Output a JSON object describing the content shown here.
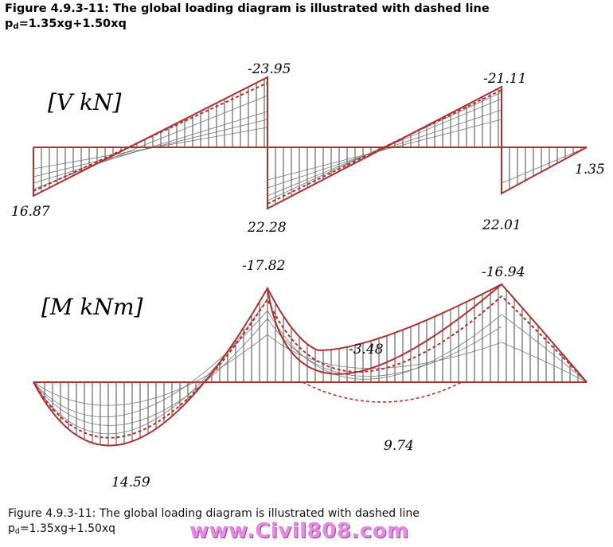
{
  "header": {
    "line1": "Figure 4.9.3-11: The global loading diagram is illustrated with dashed line",
    "line2_prefix": "p",
    "line2_sub": "d",
    "line2_rest": "=1.35xg+1.50xq"
  },
  "shear_diagram": {
    "title": "[V  kN]",
    "values": {
      "left_support": "16.87",
      "span1_right": "-23.95",
      "span2_left": "22.28",
      "span2_right": "-21.11",
      "span3_left": "22.01",
      "right_end": "1.35"
    }
  },
  "moment_diagram": {
    "title": "[M  kNm]",
    "values": {
      "span1": "14.59",
      "support1": "-17.82",
      "span2_top": "-3.48",
      "span2": "9.74",
      "support2": "-16.94"
    }
  },
  "caption": {
    "line1": "Figure 4.9.3-11: The global loading diagram is illustrated with dashed line",
    "line2_prefix": "p",
    "line2_sub": "d",
    "line2_rest": "=1.35xg+1.50xq"
  },
  "watermark": "www.Civil808.com",
  "colors": {
    "envelope": "#b03030",
    "hatch": "#1a1a1a",
    "inner_curves": "#777777"
  }
}
